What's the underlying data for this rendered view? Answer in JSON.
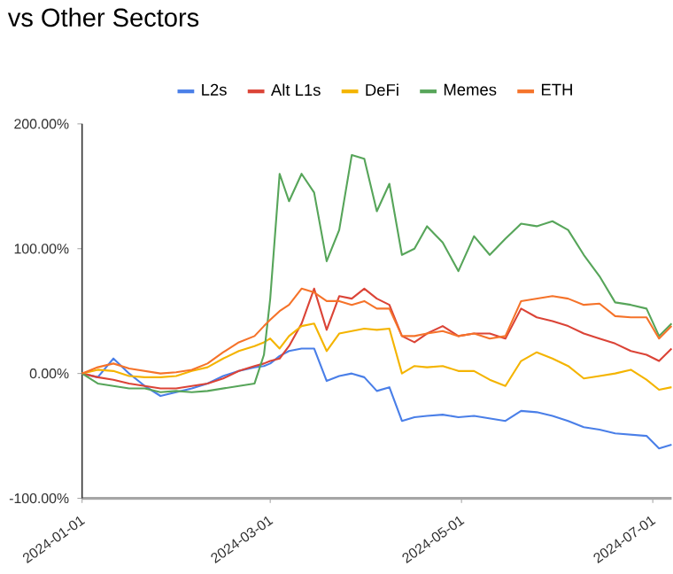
{
  "chart_data": {
    "type": "line",
    "title": "vs Other Sectors",
    "legend": "top",
    "x": [
      "2024-01-01",
      "2024-01-06",
      "2024-01-11",
      "2024-01-16",
      "2024-01-21",
      "2024-01-26",
      "2024-01-31",
      "2024-02-05",
      "2024-02-10",
      "2024-02-15",
      "2024-02-20",
      "2024-02-25",
      "2024-02-28",
      "2024-03-01",
      "2024-03-04",
      "2024-03-07",
      "2024-03-11",
      "2024-03-15",
      "2024-03-19",
      "2024-03-23",
      "2024-03-27",
      "2024-03-31",
      "2024-04-04",
      "2024-04-08",
      "2024-04-12",
      "2024-04-16",
      "2024-04-20",
      "2024-04-25",
      "2024-04-30",
      "2024-05-05",
      "2024-05-10",
      "2024-05-15",
      "2024-05-20",
      "2024-05-25",
      "2024-05-30",
      "2024-06-04",
      "2024-06-09",
      "2024-06-14",
      "2024-06-19",
      "2024-06-24",
      "2024-06-29",
      "2024-07-03",
      "2024-07-07"
    ],
    "xlim": [
      "2024-01-01",
      "2024-07-07"
    ],
    "xticks": [
      "2024-01-01",
      "2024-03-01",
      "2024-05-01",
      "2024-07-01"
    ],
    "ylim": [
      -100,
      200
    ],
    "yticks": [
      {
        "value": -100,
        "label": "-100.00%"
      },
      {
        "value": 0,
        "label": "0.00%"
      },
      {
        "value": 100,
        "label": "100.00%"
      },
      {
        "value": 200,
        "label": "200.00%"
      }
    ],
    "series": [
      {
        "name": "L2s",
        "color": "#4a7fe8",
        "values": [
          0,
          -3,
          12,
          0,
          -10,
          -18,
          -15,
          -12,
          -8,
          -2,
          2,
          5,
          6,
          8,
          14,
          18,
          20,
          20,
          -6,
          -2,
          0,
          -3,
          -14,
          -11,
          -38,
          -35,
          -34,
          -33,
          -35,
          -34,
          -36,
          -38,
          -30,
          -31,
          -34,
          -38,
          -43,
          -45,
          -48,
          -49,
          -50,
          -60,
          -57
        ]
      },
      {
        "name": "Alt L1s",
        "color": "#db4437",
        "values": [
          0,
          -3,
          -5,
          -8,
          -10,
          -12,
          -12,
          -10,
          -8,
          -4,
          2,
          6,
          8,
          10,
          12,
          22,
          40,
          68,
          35,
          62,
          60,
          68,
          60,
          55,
          30,
          25,
          32,
          38,
          30,
          32,
          32,
          28,
          52,
          45,
          42,
          38,
          32,
          28,
          24,
          18,
          15,
          10,
          20
        ]
      },
      {
        "name": "DeFi",
        "color": "#f4b400",
        "values": [
          0,
          3,
          2,
          -2,
          -3,
          -3,
          -2,
          2,
          5,
          12,
          18,
          22,
          25,
          28,
          20,
          30,
          38,
          40,
          18,
          32,
          34,
          36,
          35,
          36,
          0,
          6,
          5,
          6,
          2,
          2,
          -5,
          -10,
          10,
          17,
          12,
          6,
          -4,
          -2,
          0,
          3,
          -5,
          -13,
          -11
        ]
      },
      {
        "name": "Memes",
        "color": "#57a55a",
        "values": [
          0,
          -8,
          -10,
          -12,
          -12,
          -15,
          -14,
          -15,
          -14,
          -12,
          -10,
          -8,
          15,
          60,
          160,
          138,
          160,
          145,
          90,
          115,
          175,
          172,
          130,
          152,
          95,
          100,
          118,
          105,
          82,
          110,
          95,
          108,
          120,
          118,
          122,
          115,
          95,
          78,
          57,
          55,
          52,
          30,
          40
        ]
      },
      {
        "name": "ETH",
        "color": "#f5732a",
        "values": [
          0,
          5,
          8,
          4,
          2,
          0,
          1,
          3,
          8,
          17,
          25,
          30,
          38,
          43,
          50,
          55,
          68,
          65,
          58,
          58,
          55,
          58,
          52,
          52,
          30,
          30,
          32,
          34,
          30,
          32,
          28,
          30,
          58,
          60,
          62,
          60,
          55,
          56,
          46,
          45,
          45,
          28,
          38
        ]
      }
    ]
  }
}
